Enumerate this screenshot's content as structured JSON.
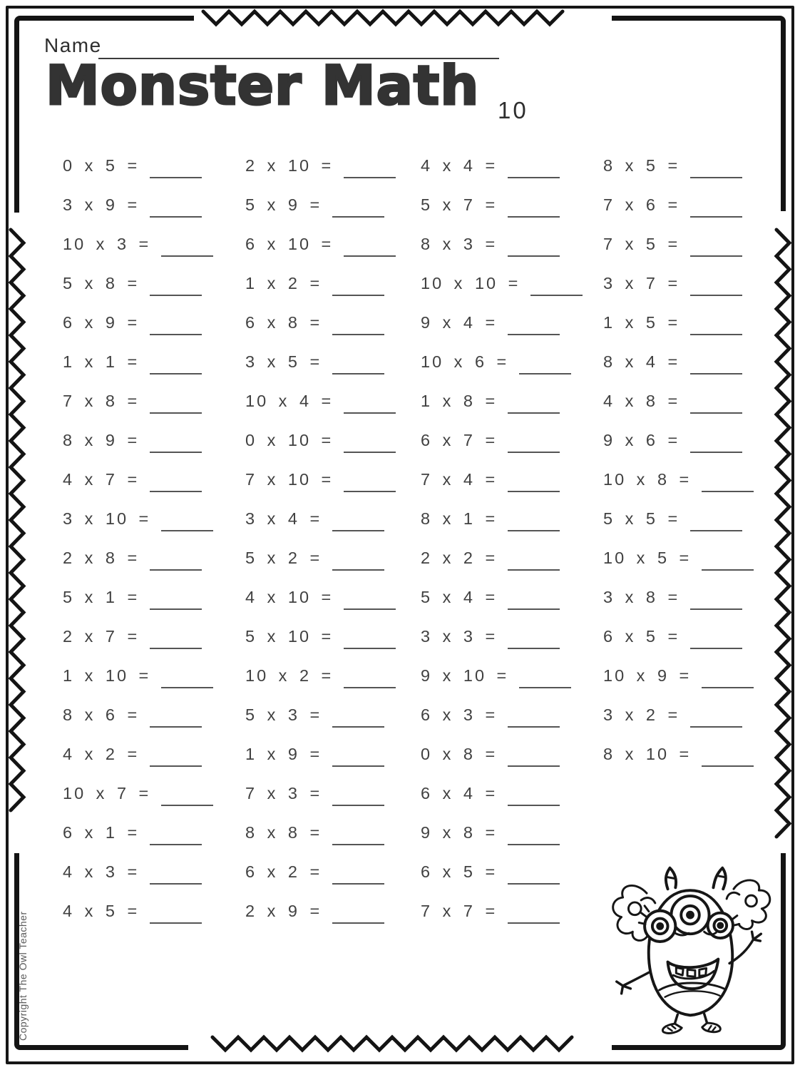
{
  "header": {
    "name_label": "Name",
    "title": "Monster Math",
    "set_number": "10"
  },
  "problems": {
    "columns": [
      {
        "items": [
          "0 x 5 =",
          "3 x 9 =",
          "10 x 3 =",
          "5 x 8 =",
          "6 x 9 =",
          "1 x 1 =",
          "7 x 8 =",
          "8 x 9 =",
          "4 x 7 =",
          "3 x 10 =",
          "2 x 8 =",
          "5 x 1 =",
          "2 x 7 =",
          "1 x 10 =",
          "8 x 6 =",
          "4 x 2 =",
          "10 x 7 =",
          "6 x 1 =",
          "4 x 3 =",
          "4 x 5 ="
        ]
      },
      {
        "items": [
          "2 x 10 =",
          "5 x 9 =",
          "6 x 10 =",
          "1 x 2 =",
          "6 x 8 =",
          "3 x 5 =",
          "10 x 4 =",
          "0 x 10 =",
          "7 x 10 =",
          "3 x 4 =",
          "5 x 2 =",
          "4 x 10 =",
          "5 x 10 =",
          "10 x 2 =",
          "5 x 3 =",
          "1 x 9 =",
          "7 x 3 =",
          "8 x 8 =",
          "6 x 2 =",
          "2 x 9 ="
        ]
      },
      {
        "items": [
          "4 x 4 =",
          "5 x 7 =",
          "8 x 3 =",
          "10 x 10 =",
          "9 x 4 =",
          "10 x 6 =",
          "1 x 8 =",
          "6 x 7 =",
          "7 x 4 =",
          "8 x 1 =",
          "2 x 2 =",
          "5 x 4 =",
          "3 x 3 =",
          "9 x 10 =",
          "6 x 3 =",
          "0 x 8 =",
          "6 x 4 =",
          "9 x 8 =",
          "6 x 5 =",
          "7 x 7 ="
        ]
      },
      {
        "items": [
          "8 x 5 =",
          "7 x 6 =",
          "7 x 5 =",
          "3 x 7 =",
          "1 x 5 =",
          "8 x 4 =",
          "4 x 8 =",
          "9 x 6 =",
          "10 x 8 =",
          "5 x 5 =",
          "10 x 5 =",
          "3 x 8 =",
          "6 x 5 =",
          "10 x 9 =",
          "3 x 2 =",
          "8 x 10 ="
        ]
      }
    ]
  },
  "footer": {
    "copyright": "Copyright The Owl Teacher"
  },
  "decorations": {
    "monster": "three-eyed-monster",
    "border": "zigzag-frame",
    "ink_color": "#161616",
    "text_color": "#414141",
    "line_color": "#555555"
  }
}
